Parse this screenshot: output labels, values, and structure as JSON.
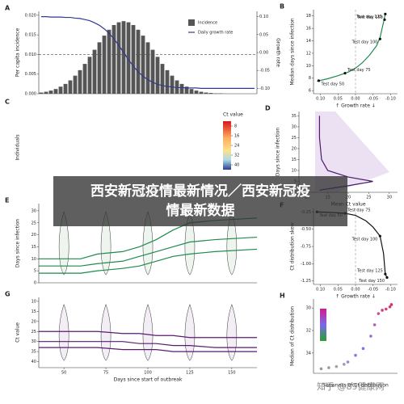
{
  "banner": {
    "line1": "西安新冠疫情最新情况／西安新冠疫",
    "line2": "情最新数据"
  },
  "watermark": "知乎 @89健康网",
  "chart_data": [
    {
      "type": "bar",
      "label": "A",
      "ylabel": "Per capita incidence",
      "y2label": "Growth rate",
      "ylim": [
        0,
        0.021
      ],
      "yticks": [
        {
          "value": 0,
          "label": "0.000"
        },
        {
          "value": 0.005,
          "label": "0.005"
        },
        {
          "value": 0.01,
          "label": "0.010"
        },
        {
          "value": 0.015,
          "label": "0.015"
        },
        {
          "value": 0.02,
          "label": "0.020"
        }
      ],
      "y2lim": [
        -0.115,
        0.115
      ],
      "y2ticks": [
        {
          "value": 0.1,
          "label": "0.10"
        },
        {
          "value": 0.05,
          "label": "0.05"
        },
        {
          "value": 0,
          "label": "0.00"
        },
        {
          "value": -0.05,
          "label": "-0.05"
        },
        {
          "value": -0.1,
          "label": "-0.10"
        }
      ],
      "hline": 0.01,
      "legend": "upper right",
      "series": [
        {
          "name": "Incidence",
          "color": "#555555",
          "values": [
            0.0003,
            0.0005,
            0.0008,
            0.0012,
            0.0018,
            0.0025,
            0.0034,
            0.0046,
            0.006,
            0.0076,
            0.0094,
            0.0112,
            0.0131,
            0.0148,
            0.0163,
            0.0175,
            0.0182,
            0.0185,
            0.0182,
            0.0175,
            0.0163,
            0.0148,
            0.0131,
            0.0112,
            0.0094,
            0.0076,
            0.006,
            0.0046,
            0.0034,
            0.0025,
            0.0018,
            0.0012,
            0.0008,
            0.0005,
            0.0003,
            0.0002,
            0.0001,
            0.0001,
            0,
            0,
            0,
            0,
            0,
            0,
            0
          ]
        },
        {
          "name": "Daily growth rate",
          "color": "#2f3b8c",
          "axis": "y2",
          "values": [
            0.1,
            0.1,
            0.099,
            0.099,
            0.099,
            0.098,
            0.098,
            0.096,
            0.095,
            0.092,
            0.089,
            0.083,
            0.076,
            0.066,
            0.054,
            0.038,
            0.02,
            0,
            -0.02,
            -0.038,
            -0.054,
            -0.066,
            -0.076,
            -0.083,
            -0.089,
            -0.092,
            -0.095,
            -0.096,
            -0.098,
            -0.098,
            -0.099,
            -0.099,
            -0.099,
            -0.1,
            -0.1,
            -0.1,
            -0.1,
            -0.1,
            -0.1,
            -0.1,
            -0.1,
            -0.1,
            -0.1,
            -0.1,
            -0.1
          ]
        }
      ]
    },
    {
      "type": "line",
      "label": "B",
      "ylabel": "Median days since infection",
      "xlabel": "↑ Growth rate ↓",
      "xlim": [
        0.12,
        -0.12
      ],
      "xticks": [
        {
          "value": 0.1,
          "label": "0.10"
        },
        {
          "value": 0.05,
          "label": "0.05"
        },
        {
          "value": 0,
          "label": "0.00"
        },
        -0.05,
        {
          "value": -0.1,
          "label": "-0.10"
        }
      ],
      "ylim": [
        5.5,
        19
      ],
      "yticks": [
        6,
        8,
        10,
        12,
        14,
        16,
        18
      ],
      "vline": 0,
      "series": [
        {
          "color": "#1e8a4c",
          "x": [
            0.11,
            0.08,
            0.05,
            0.02,
            0,
            -0.02,
            -0.04,
            -0.06,
            -0.07,
            -0.08,
            -0.085
          ],
          "values": [
            7.5,
            7.9,
            8.4,
            9,
            9.6,
            10.5,
            11.7,
            13.2,
            14.5,
            17,
            18.3
          ]
        }
      ],
      "points": [
        {
          "label": "Test day 50",
          "x": 0.105,
          "y": 7.6
        },
        {
          "label": "Test day 75",
          "x": 0.03,
          "y": 8.8
        },
        {
          "label": "Test day 100",
          "x": -0.07,
          "y": 14.3
        },
        {
          "label": "Test day 125",
          "x": -0.083,
          "y": 17.4
        },
        {
          "label": "Test day 150",
          "x": -0.085,
          "y": 18.3
        }
      ]
    },
    {
      "type": "heatmap",
      "label": "C",
      "ylabel": "Individuals",
      "colorbar": {
        "title": "Ct value",
        "lim": [
          4,
          44
        ],
        "ticks": [
          8,
          16,
          24,
          32,
          40
        ]
      }
    },
    {
      "type": "line",
      "label": "D",
      "ylabel": "Days since infection",
      "xlabel": "Mean Ct value",
      "xlim": [
        8,
        32
      ],
      "xticks": [
        10,
        15,
        20,
        25,
        30
      ],
      "ylim": [
        0,
        37
      ],
      "yticks": [
        0,
        5,
        10,
        15,
        20,
        25,
        30,
        35
      ],
      "series": [
        {
          "color": "#4b1a6e",
          "x": [
            13,
            13,
            13.5,
            15,
            20,
            26,
            20,
            13
          ],
          "values": [
            35,
            25,
            15,
            10,
            7,
            5,
            3,
            1
          ]
        }
      ]
    },
    {
      "type": "line",
      "label": "E",
      "ylabel": "Days since infection",
      "xlim": [
        35,
        165
      ],
      "ylim": [
        0,
        33
      ],
      "yticks": [
        0,
        5,
        10,
        15,
        20,
        25,
        30
      ],
      "series": [
        {
          "color": "#1e8a4c",
          "x": [
            35,
            60,
            70,
            85,
            95,
            105,
            115,
            125,
            140,
            165
          ],
          "values": [
            10,
            10,
            12,
            13,
            15,
            18,
            22,
            25,
            26,
            27
          ]
        },
        {
          "color": "#1e8a4c",
          "x": [
            35,
            60,
            70,
            85,
            95,
            105,
            115,
            125,
            140,
            165
          ],
          "values": [
            7,
            7,
            8,
            9,
            11,
            13,
            15,
            17,
            18,
            19
          ]
        },
        {
          "color": "#1e8a4c",
          "x": [
            35,
            60,
            70,
            85,
            95,
            105,
            115,
            125,
            140,
            165
          ],
          "values": [
            4,
            4,
            5,
            6,
            7,
            9,
            11,
            12,
            13,
            14
          ]
        }
      ]
    },
    {
      "type": "line",
      "label": "F",
      "ylabel": "Ct distribution skew",
      "xlabel": "↑ Growth rate ↓",
      "xlim": [
        0.12,
        -0.12
      ],
      "xticks": [
        {
          "value": 0.1,
          "label": "0.10"
        },
        {
          "value": 0.05,
          "label": "0.05"
        },
        {
          "value": 0,
          "label": "0.00"
        },
        -0.05,
        {
          "value": -0.1,
          "label": "-0.10"
        }
      ],
      "ylim": [
        -1.3,
        -0.2
      ],
      "yticks": [
        -0.25,
        {
          "value": -0.5,
          "label": "-0.50"
        },
        -0.75,
        {
          "value": -1,
          "label": "-1.00"
        },
        -1.25
      ],
      "vline": 0,
      "series": [
        {
          "color": "#111111",
          "x": [
            0.11,
            0.06,
            0.03,
            0,
            -0.03,
            -0.05,
            -0.07,
            -0.08,
            -0.085,
            -0.09
          ],
          "values": [
            -0.25,
            -0.26,
            -0.27,
            -0.3,
            -0.38,
            -0.47,
            -0.6,
            -0.85,
            -1.15,
            -1.2
          ]
        }
      ],
      "points": [
        {
          "label": "Test day 50",
          "x": 0.11,
          "y": -0.25
        },
        {
          "label": "Test day 75",
          "x": 0.03,
          "y": -0.27
        },
        {
          "label": "Test day 100",
          "x": -0.07,
          "y": -0.6
        },
        {
          "label": "Test day 125",
          "x": -0.085,
          "y": -1.15
        },
        {
          "label": "Test day 150",
          "x": -0.09,
          "y": -1.2
        }
      ]
    },
    {
      "type": "line",
      "label": "G",
      "ylabel": "Ct value",
      "xlabel": "Days since start of outbreak",
      "xlim": [
        35,
        165
      ],
      "xticks": [
        50,
        75,
        100,
        125,
        150
      ],
      "ylim": [
        43,
        8
      ],
      "yticks": [
        10,
        15,
        20,
        25,
        30,
        35,
        40
      ],
      "series": [
        {
          "color": "#5b1a72",
          "x": [
            35,
            60,
            70,
            85,
            95,
            105,
            115,
            125,
            140,
            165
          ],
          "values": [
            25,
            25,
            25,
            26,
            26,
            27,
            27,
            28,
            28,
            28
          ]
        },
        {
          "color": "#5b1a72",
          "x": [
            35,
            60,
            70,
            85,
            95,
            105,
            115,
            125,
            140,
            165
          ],
          "values": [
            30,
            30,
            30,
            30,
            31,
            31,
            32,
            32,
            33,
            33
          ]
        },
        {
          "color": "#5b1a72",
          "x": [
            35,
            60,
            70,
            85,
            95,
            105,
            115,
            125,
            140,
            165
          ],
          "values": [
            33,
            33,
            33,
            34,
            34,
            34,
            35,
            35,
            35,
            35
          ]
        }
      ]
    },
    {
      "type": "scatter",
      "label": "H",
      "ylabel": "Median of Ct distribution",
      "xlabel": "Skewness of Ct distribution",
      "xlim": [
        -1.3,
        -0.2
      ],
      "ylim": [
        35.8,
        29.2
      ],
      "yticks": [
        30,
        32,
        34
      ],
      "series": [
        {
          "x": [
            -1.2,
            -1.1,
            -1.0,
            -0.9,
            -0.85,
            -0.75,
            -0.65,
            -0.55,
            -0.5,
            -0.45,
            -0.4,
            -0.35,
            -0.3,
            -0.28
          ],
          "values": [
            35.4,
            35.3,
            35.2,
            35,
            34.8,
            34.2,
            33.6,
            32.5,
            31.5,
            30.5,
            30.2,
            30.1,
            29.9,
            29.7
          ],
          "colors": [
            "#9a9a9a",
            "#9a9a9a",
            "#a0a0a8",
            "#9aa0b8",
            "#8a90c8",
            "#8080d0",
            "#7a7ad8",
            "#9070c8",
            "#b060b0",
            "#c84a9a",
            "#d0408a",
            "#d8407a",
            "#d03c70",
            "#c83868"
          ]
        }
      ]
    }
  ]
}
